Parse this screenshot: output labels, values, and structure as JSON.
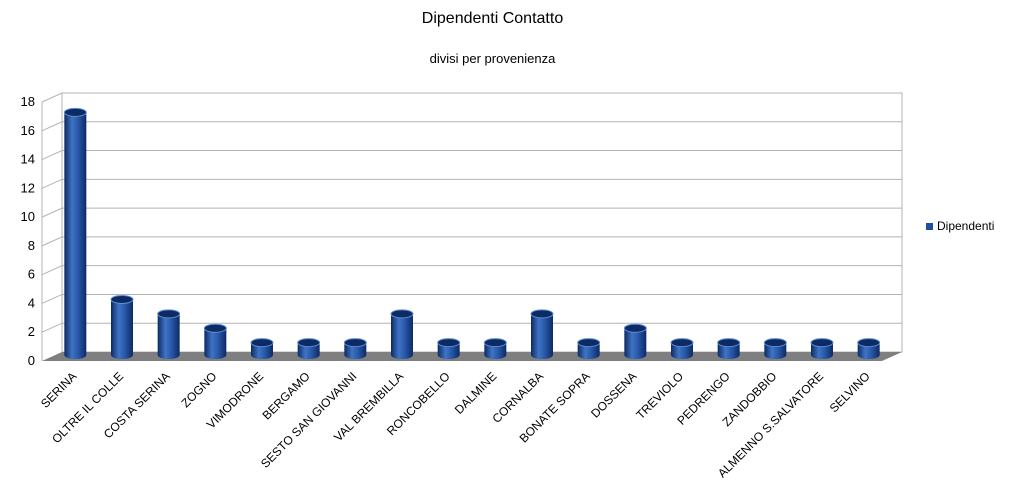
{
  "chart_data": {
    "type": "bar",
    "title": "Dipendenti Contatto",
    "subtitle": "divisi per provenienza",
    "categories": [
      "SERINA",
      "OLTRE IL COLLE",
      "COSTA SERINA",
      "ZOGNO",
      "VIMODRONE",
      "BERGAMO",
      "SESTO SAN GIOVANNI",
      "VAL BREMBILLA",
      "RONCOBELLO",
      "DALMINE",
      "CORNALBA",
      "BONATE SOPRA",
      "DOSSENA",
      "TREVIOLO",
      "PEDRENGO",
      "ZANDOBBIO",
      "ALMENNO S.SALVATORE",
      "SELVINO"
    ],
    "series": [
      {
        "name": "Dipendenti",
        "values": [
          17,
          4,
          3,
          2,
          1,
          1,
          1,
          3,
          1,
          1,
          3,
          1,
          2,
          1,
          1,
          1,
          1,
          1
        ]
      }
    ],
    "y_ticks": [
      "0",
      "2",
      "4",
      "6",
      "8",
      "10",
      "12",
      "14",
      "16",
      "18"
    ],
    "ylim": [
      0,
      18
    ],
    "grid": true,
    "legend_position": "right",
    "bar_style": "3d-cylinder",
    "colors": {
      "bar": "#1f4f9e",
      "bar_dark": "#0d2a63",
      "bar_light": "#5b8fd8",
      "floor": "#7f7f7f",
      "grid": "#b3b3b3"
    }
  }
}
